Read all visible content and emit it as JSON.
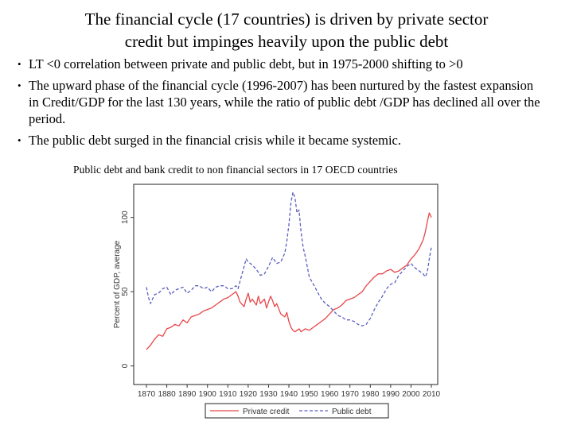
{
  "slide": {
    "title_line1": "The financial cycle (17 countries) is driven by private sector",
    "title_line2": "credit but impinges heavily upon the public debt",
    "bullets": [
      "LT <0 correlation between private and public debt, but in 1975-2000 shifting  to >0",
      "The upward phase of the financial cycle (1996-2007) has been nurtured by the fastest expansion  in Credit/GDP for the last 130 years, while the ratio of public debt /GDP has declined all over the period.",
      "The  public debt surged in the financial crisis while it became systemic."
    ],
    "chart_caption": "Public debt and bank credit to non financial sectors in 17 OECD countries"
  },
  "chart_data": {
    "type": "line",
    "title": "",
    "xlabel": "",
    "ylabel": "Percent of GDP, average",
    "xlim": [
      1870,
      2010
    ],
    "ylim": [
      0,
      100
    ],
    "x_ticks": [
      1870,
      1880,
      1890,
      1900,
      1910,
      1920,
      1930,
      1940,
      1950,
      1960,
      1970,
      1980,
      1990,
      2000,
      2010
    ],
    "y_ticks": [
      0,
      50,
      100
    ],
    "grid": false,
    "legend_position": "bottom",
    "colors": {
      "private": "#e8474a",
      "public": "#5b5fbf"
    },
    "series": [
      {
        "name": "Private credit",
        "style": "solid",
        "x": [
          1870,
          1872,
          1874,
          1876,
          1878,
          1880,
          1882,
          1884,
          1886,
          1888,
          1890,
          1892,
          1894,
          1896,
          1898,
          1900,
          1902,
          1904,
          1906,
          1908,
          1910,
          1912,
          1914,
          1915,
          1916,
          1918,
          1919,
          1920,
          1921,
          1922,
          1924,
          1925,
          1926,
          1928,
          1929,
          1930,
          1931,
          1932,
          1933,
          1934,
          1936,
          1938,
          1939,
          1940,
          1941,
          1942,
          1943,
          1944,
          1945,
          1946,
          1948,
          1950,
          1952,
          1954,
          1956,
          1958,
          1960,
          1962,
          1964,
          1966,
          1968,
          1970,
          1972,
          1974,
          1976,
          1978,
          1980,
          1982,
          1984,
          1986,
          1988,
          1990,
          1992,
          1994,
          1996,
          1998,
          2000,
          2002,
          2004,
          2006,
          2007,
          2008,
          2009,
          2010
        ],
        "values": [
          11,
          14,
          18,
          21,
          20,
          25,
          26,
          28,
          27,
          31,
          29,
          33,
          34,
          35,
          37,
          38,
          39,
          41,
          43,
          45,
          46,
          48,
          50,
          47,
          43,
          40,
          45,
          49,
          43,
          45,
          41,
          47,
          42,
          45,
          39,
          43,
          47,
          44,
          40,
          42,
          35,
          33,
          36,
          30,
          26,
          24,
          23,
          24,
          25,
          23,
          25,
          24,
          26,
          28,
          30,
          32,
          35,
          38,
          39,
          41,
          44,
          45,
          46,
          48,
          50,
          54,
          57,
          60,
          62,
          62,
          64,
          65,
          63,
          64,
          66,
          68,
          72,
          75,
          79,
          85,
          90,
          97,
          103,
          100
        ]
      },
      {
        "name": "Public debt",
        "style": "dashed",
        "x": [
          1870,
          1871,
          1872,
          1874,
          1876,
          1878,
          1880,
          1882,
          1884,
          1886,
          1888,
          1890,
          1892,
          1894,
          1896,
          1898,
          1900,
          1902,
          1904,
          1906,
          1908,
          1910,
          1912,
          1914,
          1915,
          1916,
          1918,
          1919,
          1920,
          1922,
          1924,
          1926,
          1928,
          1930,
          1932,
          1934,
          1936,
          1938,
          1939,
          1940,
          1941,
          1942,
          1943,
          1944,
          1945,
          1946,
          1947,
          1948,
          1950,
          1952,
          1954,
          1956,
          1958,
          1960,
          1962,
          1964,
          1966,
          1968,
          1970,
          1972,
          1974,
          1976,
          1978,
          1980,
          1982,
          1984,
          1986,
          1988,
          1990,
          1992,
          1994,
          1996,
          1998,
          2000,
          2002,
          2004,
          2006,
          2007,
          2008,
          2009,
          2010
        ],
        "values": [
          53,
          46,
          42,
          48,
          49,
          52,
          53,
          48,
          51,
          52,
          53,
          49,
          51,
          54,
          54,
          52,
          53,
          50,
          53,
          54,
          54,
          52,
          52,
          54,
          52,
          57,
          67,
          72,
          70,
          68,
          65,
          61,
          62,
          67,
          73,
          69,
          70,
          76,
          84,
          95,
          110,
          117,
          113,
          103,
          105,
          90,
          80,
          74,
          60,
          55,
          50,
          45,
          42,
          40,
          37,
          34,
          33,
          31,
          31,
          30,
          28,
          27,
          28,
          32,
          38,
          43,
          47,
          52,
          55,
          56,
          61,
          64,
          67,
          69,
          66,
          64,
          62,
          60,
          63,
          72,
          80
        ]
      }
    ]
  }
}
